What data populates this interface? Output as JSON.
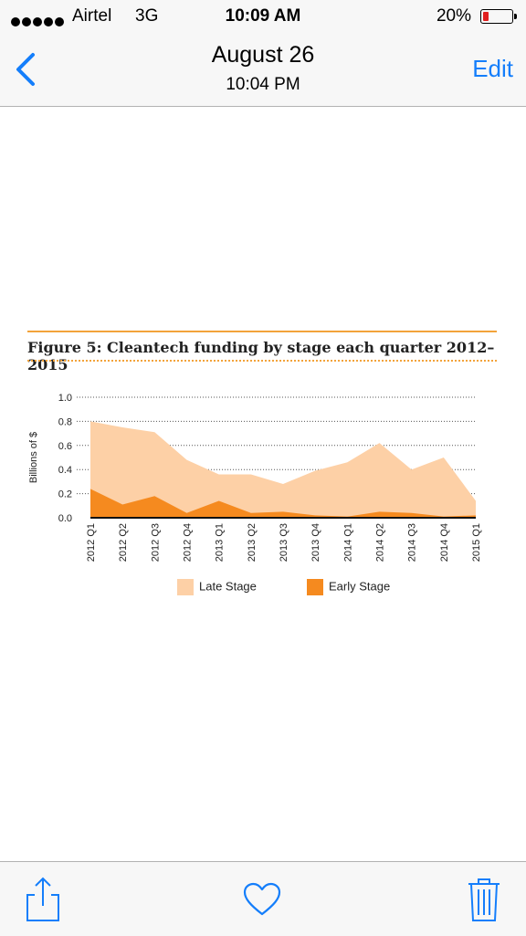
{
  "status_bar": {
    "carrier": "Airtel",
    "network": "3G",
    "time": "10:09 AM",
    "battery_percent": "20%"
  },
  "nav": {
    "title": "August 26",
    "subtitle": "10:04 PM",
    "edit_label": "Edit",
    "back_icon": "chevron-left-icon"
  },
  "figure": {
    "title": "Figure 5: Cleantech funding by stage each quarter 2012–2015"
  },
  "chart_data": {
    "type": "area",
    "ylabel": "Billions of $",
    "ylim": [
      0,
      1.0
    ],
    "yticks": [
      "1.0",
      "0.8",
      "0.6",
      "0.4",
      "0.2",
      "0.0"
    ],
    "categories": [
      "2012 Q1",
      "2012 Q2",
      "2012 Q3",
      "2012 Q4",
      "2013 Q1",
      "2013 Q2",
      "2013 Q3",
      "2013 Q4",
      "2014 Q1",
      "2014 Q2",
      "2014 Q3",
      "2014 Q4",
      "2015 Q1"
    ],
    "series": [
      {
        "name": "Late Stage",
        "color": "#fdd0a6",
        "values": [
          0.56,
          0.64,
          0.53,
          0.44,
          0.22,
          0.32,
          0.23,
          0.37,
          0.45,
          0.57,
          0.36,
          0.49,
          0.12
        ]
      },
      {
        "name": "Early Stage",
        "color": "#f58a1f",
        "values": [
          0.24,
          0.11,
          0.18,
          0.04,
          0.14,
          0.04,
          0.05,
          0.02,
          0.01,
          0.05,
          0.04,
          0.01,
          0.02
        ]
      }
    ],
    "legend": [
      "Late Stage",
      "Early Stage"
    ],
    "legend_position": "bottom",
    "grid": "dotted horizontal"
  },
  "toolbar": {
    "share_icon": "share-icon",
    "favorite_icon": "heart-icon",
    "delete_icon": "trash-icon"
  },
  "colors": {
    "accent": "#147efb",
    "figure_rule": "#f3a33a",
    "battery_low": "#e02020"
  }
}
